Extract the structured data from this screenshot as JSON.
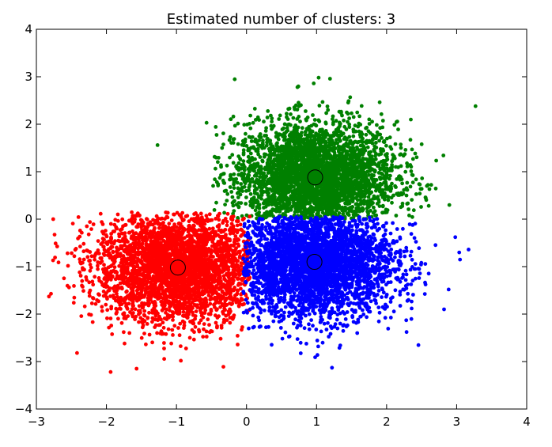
{
  "chart_data": {
    "type": "scatter",
    "title": "Estimated number of clusters: 3",
    "xlabel": "",
    "ylabel": "",
    "xlim": [
      -3,
      4
    ],
    "ylim": [
      -4,
      4
    ],
    "xticks": [
      -3,
      -2,
      -1,
      0,
      1,
      2,
      3,
      4
    ],
    "yticks": [
      -4,
      -3,
      -2,
      -1,
      0,
      1,
      2,
      3,
      4
    ],
    "tick_labels_x": [
      "−3",
      "−2",
      "−1",
      "0",
      "1",
      "2",
      "3",
      "4"
    ],
    "tick_labels_y": [
      "−4",
      "−3",
      "−2",
      "−1",
      "0",
      "1",
      "2",
      "3",
      "4"
    ],
    "grid": false,
    "legend": "none",
    "clusters": [
      {
        "color": "#008000",
        "center": [
          0.98,
          0.88
        ],
        "spread": [
          0.58,
          0.58
        ],
        "approx_points": 3300,
        "x_range": [
          -0.5,
          3.3
        ],
        "y_range": [
          0.0,
          3.0
        ],
        "outliers": [
          [
            3.27,
            2.38
          ],
          [
            -1.27,
            1.56
          ],
          [
            1.03,
            2.98
          ],
          [
            0.96,
            2.86
          ],
          [
            -0.57,
            2.03
          ]
        ]
      },
      {
        "color": "#ff0000",
        "center": [
          -0.98,
          -1.02
        ],
        "spread": [
          0.58,
          0.58
        ],
        "approx_points": 3300,
        "x_range": [
          -2.9,
          0.05
        ],
        "y_range": [
          -3.25,
          0.15
        ],
        "outliers": [
          [
            -1.94,
            -3.22
          ],
          [
            -1.57,
            -3.15
          ],
          [
            -2.42,
            -2.82
          ],
          [
            -0.33,
            -3.11
          ],
          [
            -2.82,
            -1.63
          ],
          [
            -2.76,
            0.0
          ]
        ]
      },
      {
        "color": "#0000ff",
        "center": [
          0.97,
          -0.9
        ],
        "spread": [
          0.58,
          0.58
        ],
        "approx_points": 3300,
        "x_range": [
          -0.05,
          3.2
        ],
        "y_range": [
          -3.15,
          0.05
        ],
        "outliers": [
          [
            1.22,
            -3.13
          ],
          [
            0.98,
            -2.91
          ],
          [
            3.17,
            -0.64
          ],
          [
            2.98,
            -0.38
          ],
          [
            2.28,
            -2.13
          ]
        ]
      }
    ]
  }
}
